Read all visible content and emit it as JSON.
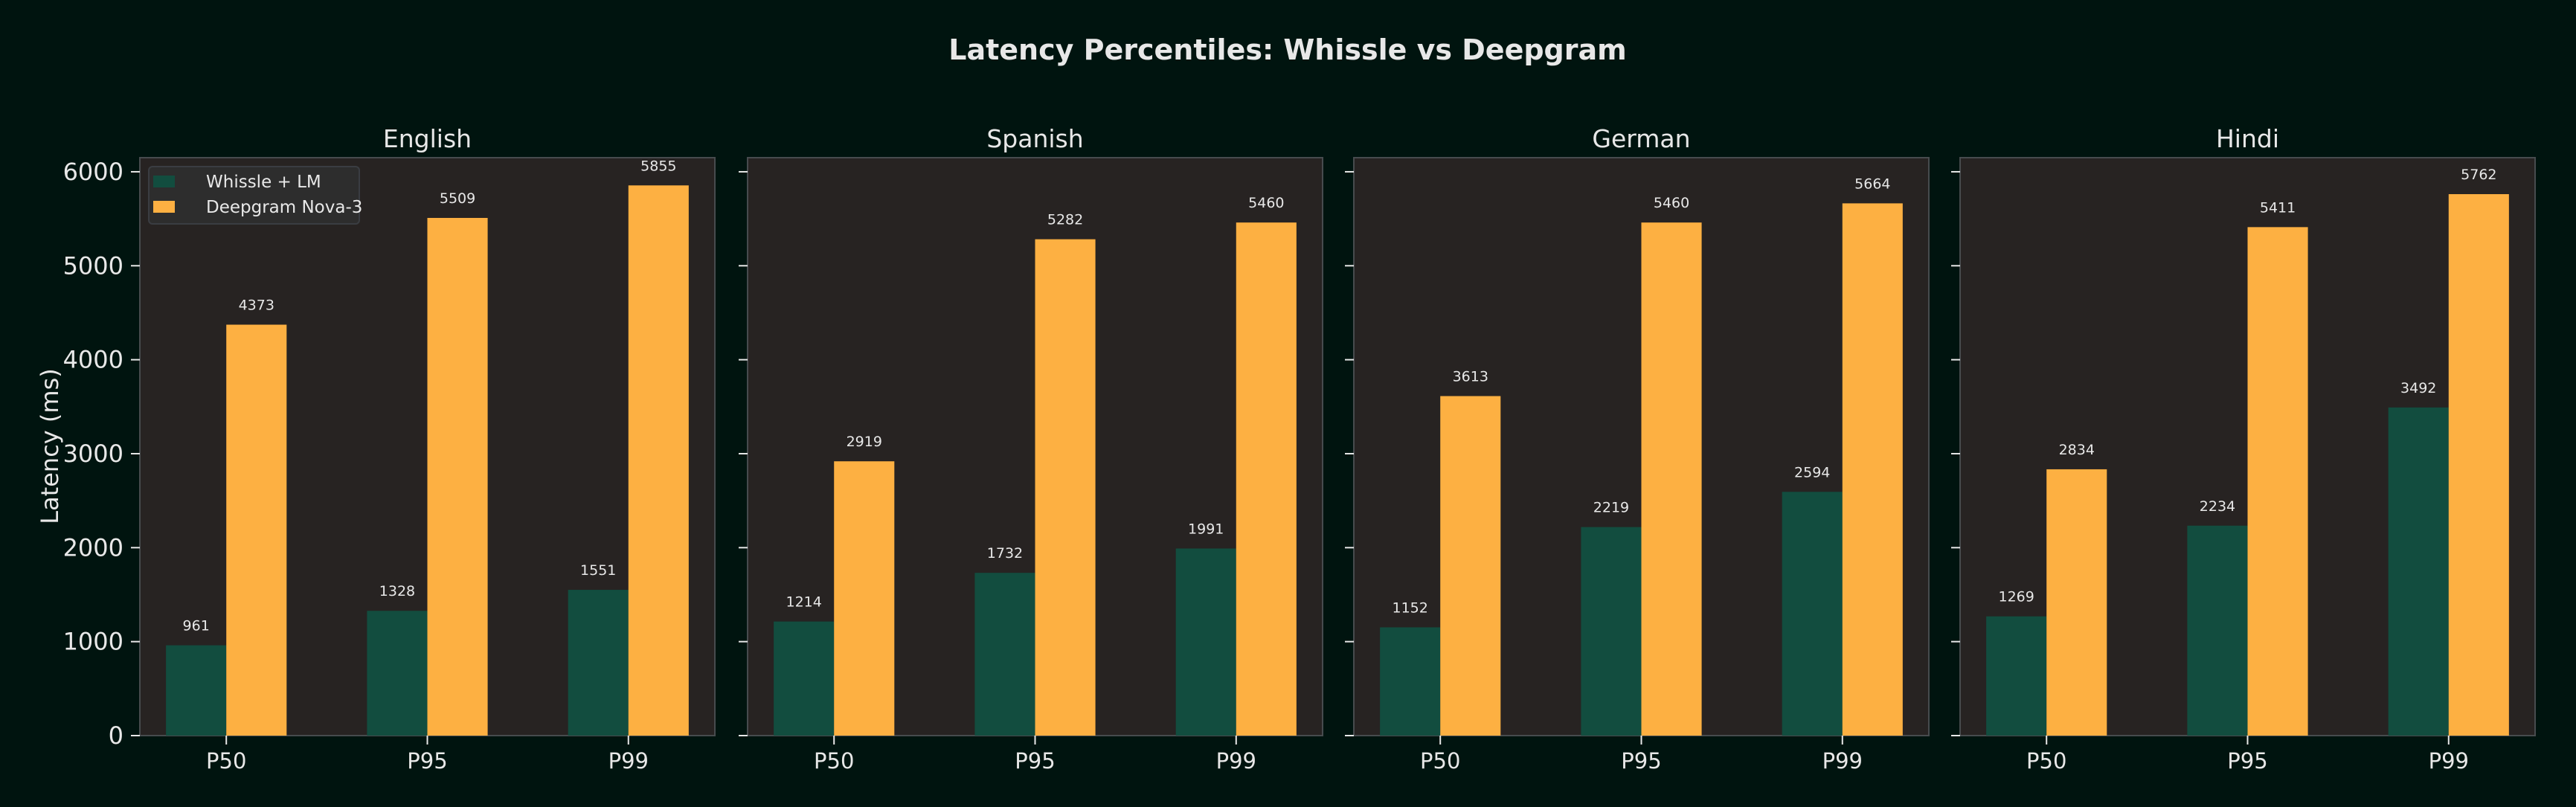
{
  "chart_data": {
    "type": "bar",
    "title": "Latency Percentiles: Whissle vs Deepgram",
    "ylabel": "Latency (ms)",
    "xlabel": "",
    "ylim": [
      0,
      6150
    ],
    "yticks": [
      0,
      1000,
      2000,
      3000,
      4000,
      5000,
      6000
    ],
    "grid": false,
    "legend_placement": "upper-left",
    "colors": {
      "background": "#00140f",
      "plot_background": "#272322",
      "Whissle + LM": "#124d3f",
      "Deepgram Nova-3": "#fdb042"
    },
    "categories": [
      "P50",
      "P95",
      "P99"
    ],
    "series_names": [
      "Whissle + LM",
      "Deepgram Nova-3"
    ],
    "panels": [
      {
        "title": "English",
        "series": [
          {
            "name": "Whissle + LM",
            "values": [
              961,
              1328,
              1551
            ]
          },
          {
            "name": "Deepgram Nova-3",
            "values": [
              4373,
              5509,
              5855
            ]
          }
        ]
      },
      {
        "title": "Spanish",
        "series": [
          {
            "name": "Whissle + LM",
            "values": [
              1214,
              1732,
              1991
            ]
          },
          {
            "name": "Deepgram Nova-3",
            "values": [
              2919,
              5282,
              5460
            ]
          }
        ]
      },
      {
        "title": "German",
        "series": [
          {
            "name": "Whissle + LM",
            "values": [
              1152,
              2219,
              2594
            ]
          },
          {
            "name": "Deepgram Nova-3",
            "values": [
              3613,
              5460,
              5664
            ]
          }
        ]
      },
      {
        "title": "Hindi",
        "series": [
          {
            "name": "Whissle + LM",
            "values": [
              1269,
              2234,
              3492
            ]
          },
          {
            "name": "Deepgram Nova-3",
            "values": [
              2834,
              5411,
              5762
            ]
          }
        ]
      }
    ]
  }
}
